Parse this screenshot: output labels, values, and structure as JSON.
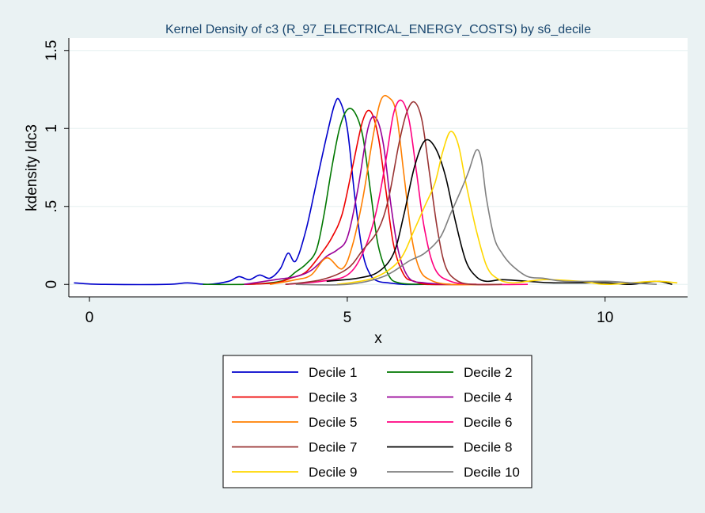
{
  "chart_data": {
    "type": "line",
    "title": "Kernel Density of c3 (R_97_ELECTRICAL_ENERGY_COSTS) by s6_decile",
    "xlabel": "x",
    "ylabel": "kdensity ldc3",
    "xlim": [
      -0.4,
      11.6
    ],
    "ylim": [
      -0.08,
      1.58
    ],
    "xticks": [
      0,
      5,
      10
    ],
    "xtick_labels": [
      "0",
      "5",
      "10"
    ],
    "yticks": [
      0,
      0.5,
      1,
      1.5
    ],
    "ytick_labels": [
      "0",
      ".5",
      "1",
      "1.5"
    ],
    "grid": true,
    "legend": "bottom",
    "colors": {
      "background": "#eaf2f3",
      "plot_background": "#ffffff",
      "gridline": "#eaf2f3"
    },
    "series": [
      {
        "name": "Decile 1",
        "color": "#0000cc",
        "x": [
          -0.3,
          -0.1,
          0.3,
          1.5,
          1.9,
          2.3,
          2.7,
          2.9,
          3.1,
          3.3,
          3.5,
          3.7,
          3.85,
          4.0,
          4.2,
          4.4,
          4.6,
          4.75,
          4.85,
          5.0,
          5.15,
          5.3,
          5.45,
          5.6,
          5.8,
          6.1,
          6.5,
          7.0
        ],
        "y": [
          0.01,
          0.005,
          0.0,
          0.0,
          0.01,
          0.0,
          0.02,
          0.05,
          0.03,
          0.06,
          0.04,
          0.1,
          0.2,
          0.15,
          0.35,
          0.65,
          0.95,
          1.15,
          1.18,
          1.0,
          0.55,
          0.2,
          0.06,
          0.02,
          0.01,
          0.0,
          0.0,
          0.0
        ]
      },
      {
        "name": "Decile 2",
        "color": "#007700",
        "x": [
          2.2,
          3.0,
          3.5,
          3.8,
          4.0,
          4.2,
          4.4,
          4.55,
          4.7,
          4.85,
          5.0,
          5.15,
          5.3,
          5.45,
          5.6,
          5.8,
          6.0,
          6.5,
          7.5
        ],
        "y": [
          0.0,
          0.0,
          0.01,
          0.03,
          0.08,
          0.13,
          0.22,
          0.45,
          0.75,
          1.0,
          1.12,
          1.1,
          0.95,
          0.6,
          0.25,
          0.06,
          0.01,
          0.0,
          0.0
        ]
      },
      {
        "name": "Decile 3",
        "color": "#ee0000",
        "x": [
          3.0,
          3.6,
          3.9,
          4.2,
          4.5,
          4.7,
          4.9,
          5.1,
          5.3,
          5.45,
          5.6,
          5.75,
          5.9,
          6.1,
          6.3,
          6.6,
          7.5
        ],
        "y": [
          0.0,
          0.01,
          0.04,
          0.08,
          0.2,
          0.3,
          0.45,
          0.75,
          1.05,
          1.11,
          0.95,
          0.6,
          0.25,
          0.06,
          0.02,
          0.0,
          0.0
        ]
      },
      {
        "name": "Decile 4",
        "color": "#990099",
        "x": [
          3.0,
          3.6,
          4.0,
          4.3,
          4.6,
          4.8,
          5.0,
          5.2,
          5.4,
          5.55,
          5.7,
          5.85,
          6.0,
          6.2,
          6.5,
          7.0
        ],
        "y": [
          0.0,
          0.03,
          0.05,
          0.09,
          0.18,
          0.22,
          0.3,
          0.6,
          1.0,
          1.07,
          0.9,
          0.5,
          0.2,
          0.04,
          0.01,
          0.0
        ]
      },
      {
        "name": "Decile 5",
        "color": "#ff7f00",
        "x": [
          3.5,
          4.0,
          4.3,
          4.6,
          4.9,
          5.1,
          5.3,
          5.5,
          5.65,
          5.8,
          5.95,
          6.1,
          6.25,
          6.4,
          6.6,
          7.0,
          8.0
        ],
        "y": [
          0.0,
          0.03,
          0.06,
          0.17,
          0.1,
          0.25,
          0.55,
          0.95,
          1.18,
          1.2,
          1.1,
          0.7,
          0.3,
          0.1,
          0.03,
          0.0,
          0.0
        ]
      },
      {
        "name": "Decile 6",
        "color": "#ff0080",
        "x": [
          3.8,
          4.5,
          5.0,
          5.3,
          5.55,
          5.75,
          5.9,
          6.05,
          6.2,
          6.35,
          6.5,
          6.7,
          7.0,
          7.5,
          8.5
        ],
        "y": [
          0.0,
          0.02,
          0.06,
          0.2,
          0.45,
          0.8,
          1.1,
          1.18,
          1.05,
          0.7,
          0.35,
          0.1,
          0.02,
          0.0,
          0.0
        ]
      },
      {
        "name": "Decile 7",
        "color": "#993333",
        "x": [
          3.8,
          4.5,
          5.0,
          5.3,
          5.6,
          5.8,
          6.0,
          6.15,
          6.3,
          6.45,
          6.6,
          6.75,
          6.9,
          7.1,
          7.4,
          8.0
        ],
        "y": [
          0.0,
          0.03,
          0.1,
          0.22,
          0.35,
          0.55,
          0.9,
          1.1,
          1.17,
          1.05,
          0.7,
          0.35,
          0.12,
          0.03,
          0.0,
          0.0
        ]
      },
      {
        "name": "Decile 8",
        "color": "#000000",
        "x": [
          4.6,
          5.2,
          5.6,
          5.9,
          6.1,
          6.3,
          6.5,
          6.7,
          6.9,
          7.1,
          7.3,
          7.5,
          7.7,
          8.0,
          8.5,
          9.0,
          10.0,
          10.5,
          11.0,
          11.3
        ],
        "y": [
          0.02,
          0.04,
          0.08,
          0.2,
          0.45,
          0.75,
          0.92,
          0.88,
          0.7,
          0.4,
          0.15,
          0.05,
          0.02,
          0.03,
          0.02,
          0.01,
          0.01,
          0.0,
          0.02,
          0.0
        ]
      },
      {
        "name": "Decile 9",
        "color": "#ffd700",
        "x": [
          4.8,
          5.5,
          6.0,
          6.3,
          6.5,
          6.7,
          6.85,
          7.0,
          7.15,
          7.3,
          7.5,
          7.7,
          7.9,
          8.2,
          8.8,
          9.5,
          10.0,
          10.5,
          11.0,
          11.4
        ],
        "y": [
          0.0,
          0.04,
          0.15,
          0.35,
          0.5,
          0.65,
          0.85,
          0.98,
          0.9,
          0.65,
          0.35,
          0.12,
          0.04,
          0.01,
          0.03,
          0.02,
          0.0,
          0.01,
          0.02,
          0.01
        ]
      },
      {
        "name": "Decile 10",
        "color": "#808080",
        "x": [
          4.0,
          5.0,
          5.7,
          6.2,
          6.5,
          6.8,
          7.0,
          7.2,
          7.35,
          7.5,
          7.6,
          7.7,
          7.85,
          8.0,
          8.2,
          8.5,
          8.8,
          9.2,
          10.0,
          10.5,
          11.0
        ],
        "y": [
          0.0,
          0.0,
          0.05,
          0.15,
          0.2,
          0.3,
          0.45,
          0.6,
          0.72,
          0.86,
          0.8,
          0.55,
          0.3,
          0.2,
          0.12,
          0.05,
          0.04,
          0.02,
          0.02,
          0.01,
          0.0
        ]
      }
    ]
  }
}
